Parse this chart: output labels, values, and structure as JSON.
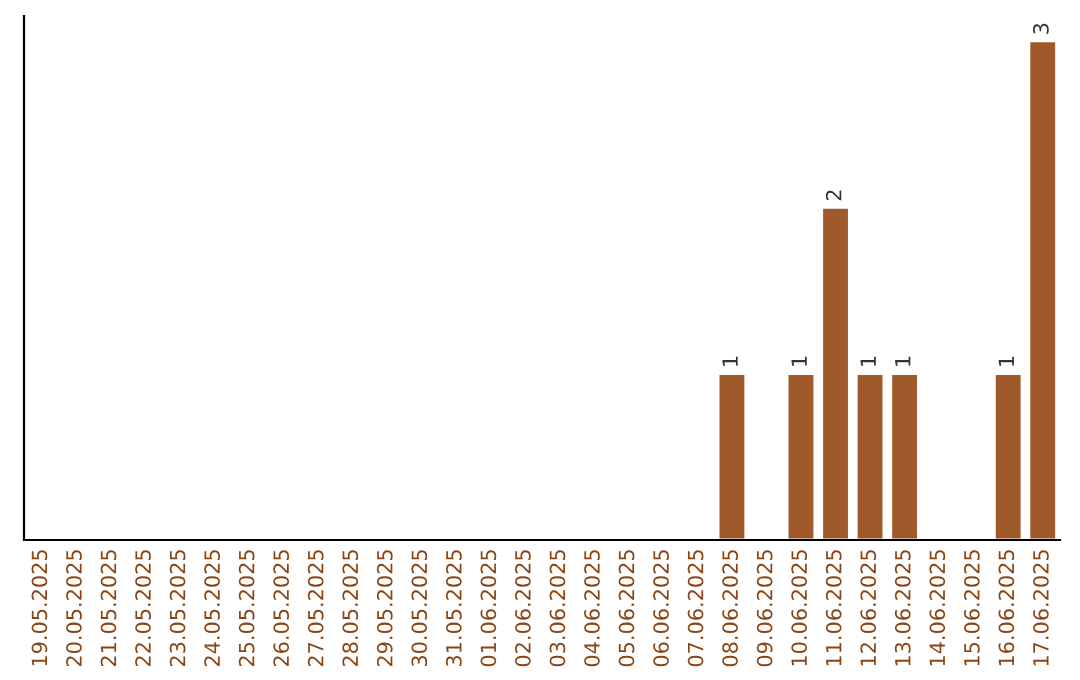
{
  "chart_data": {
    "type": "bar",
    "categories": [
      "19.05.2025",
      "20.05.2025",
      "21.05.2025",
      "22.05.2025",
      "23.05.2025",
      "24.05.2025",
      "25.05.2025",
      "26.05.2025",
      "27.05.2025",
      "28.05.2025",
      "29.05.2025",
      "30.05.2025",
      "31.05.2025",
      "01.06.2025",
      "02.06.2025",
      "03.06.2025",
      "04.06.2025",
      "05.06.2025",
      "06.06.2025",
      "07.06.2025",
      "08.06.2025",
      "09.06.2025",
      "10.06.2025",
      "11.06.2025",
      "12.06.2025",
      "13.06.2025",
      "14.06.2025",
      "15.06.2025",
      "16.06.2025",
      "17.06.2025"
    ],
    "values": [
      null,
      null,
      null,
      null,
      null,
      null,
      null,
      null,
      null,
      null,
      null,
      null,
      null,
      null,
      null,
      null,
      null,
      null,
      null,
      null,
      1,
      null,
      1,
      2,
      1,
      1,
      null,
      null,
      1,
      3
    ],
    "value_labels": [
      null,
      null,
      null,
      null,
      null,
      null,
      null,
      null,
      null,
      null,
      null,
      null,
      null,
      null,
      null,
      null,
      null,
      null,
      null,
      null,
      "1",
      null,
      "1",
      "2",
      "1",
      "1",
      null,
      null,
      "1",
      "3"
    ],
    "color": "#a0592a",
    "ylim": [
      0,
      3.15
    ],
    "tick_labels": "x",
    "grid": false,
    "legend": false
  }
}
